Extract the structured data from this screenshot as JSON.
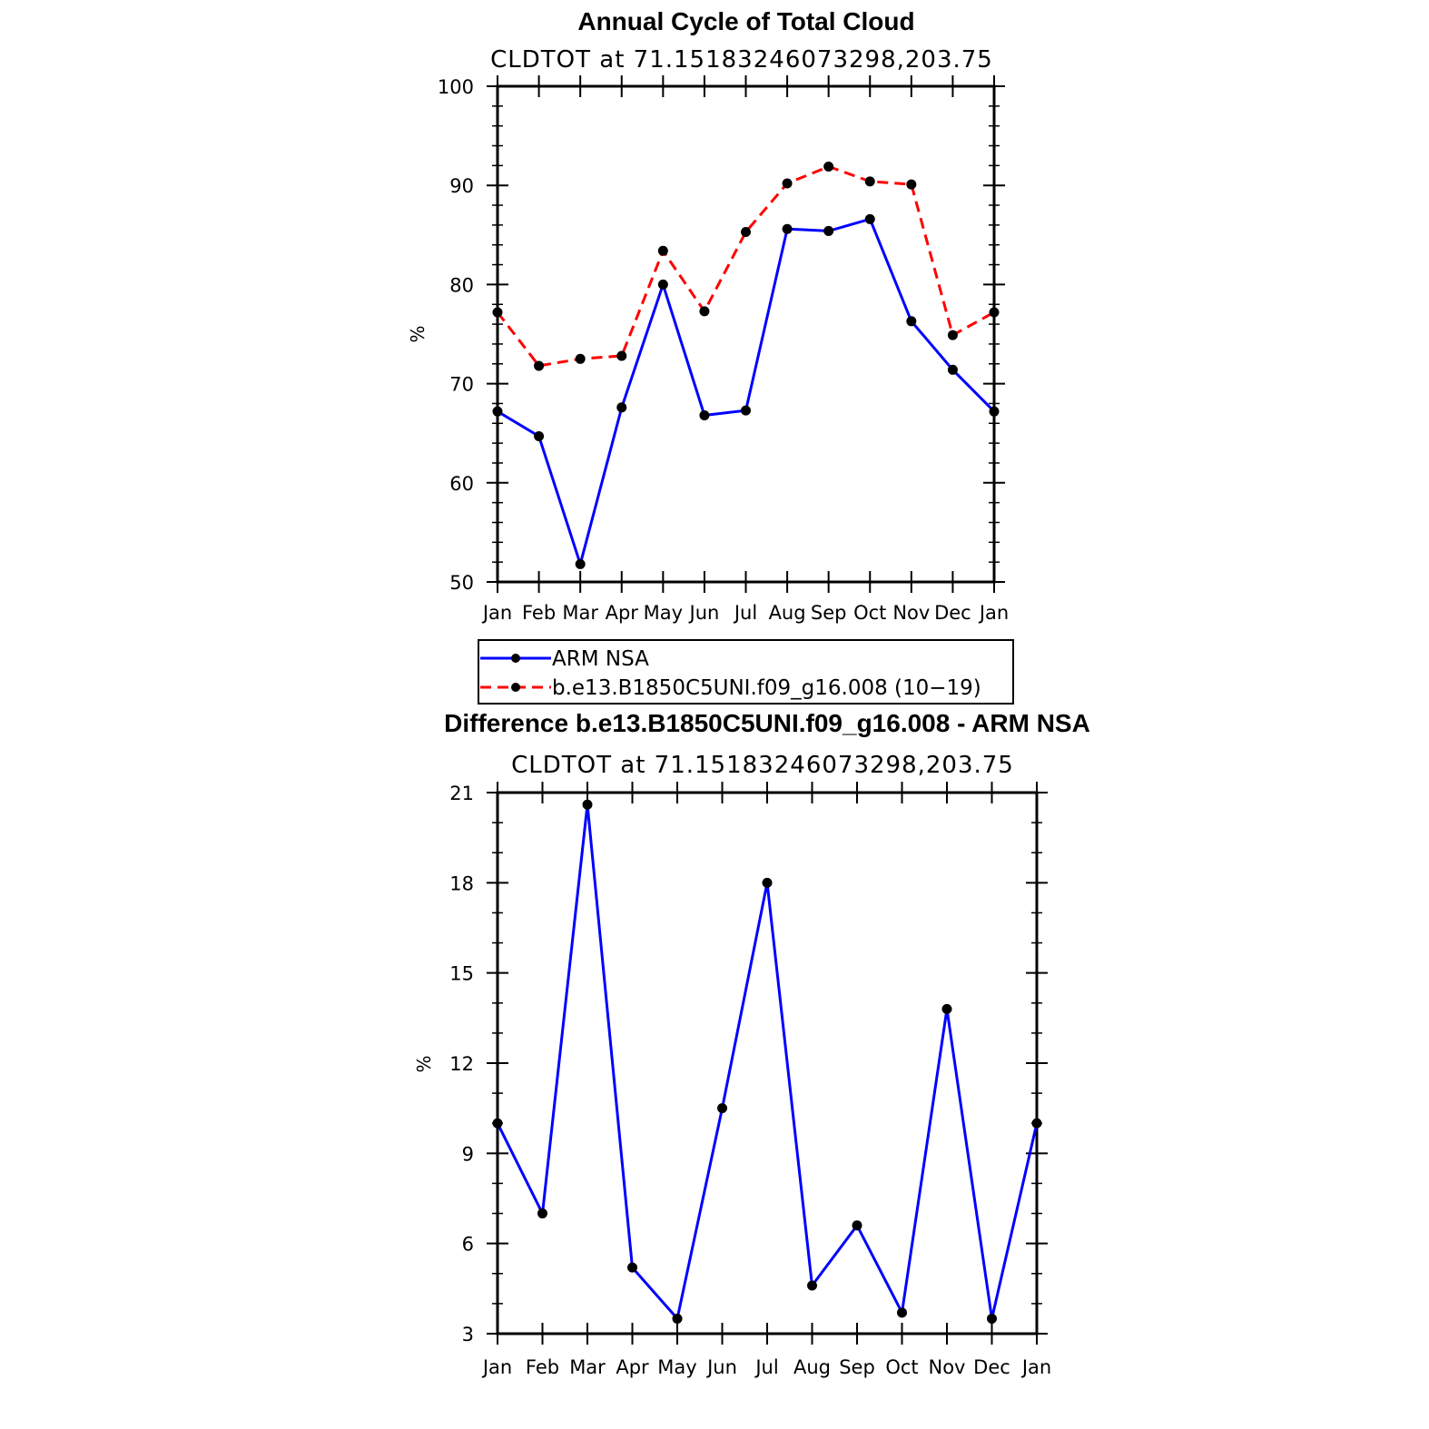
{
  "chart_data": [
    {
      "type": "line",
      "title": "Annual Cycle of Total Cloud",
      "subtitle": "CLDTOT at 71.15183246073298,203.75",
      "ylabel": "%",
      "ylim": [
        50,
        100
      ],
      "yticks": [
        50,
        60,
        70,
        80,
        90,
        100
      ],
      "categories": [
        "Jan",
        "Feb",
        "Mar",
        "Apr",
        "May",
        "Jun",
        "Jul",
        "Aug",
        "Sep",
        "Oct",
        "Nov",
        "Dec",
        "Jan"
      ],
      "series": [
        {
          "name": "ARM NSA",
          "color": "#0000ff",
          "dash": "solid",
          "values": [
            67.2,
            64.7,
            51.8,
            67.6,
            80.0,
            66.8,
            67.3,
            85.6,
            85.4,
            86.6,
            76.3,
            71.4,
            67.2
          ]
        },
        {
          "name": "b.e13.B1850C5UNI.f09_g16.008 (10−19)",
          "color": "#ff0000",
          "dash": "dashed",
          "values": [
            77.2,
            71.8,
            72.5,
            72.8,
            83.4,
            77.3,
            85.3,
            90.2,
            91.9,
            90.4,
            90.1,
            74.9,
            77.2
          ]
        }
      ],
      "legend": "bottom"
    },
    {
      "type": "line",
      "title": "Difference b.e13.B1850C5UNI.f09_g16.008 - ARM NSA",
      "subtitle": "CLDTOT at 71.15183246073298,203.75",
      "ylabel": "%",
      "ylim": [
        3,
        21
      ],
      "yticks": [
        3,
        6,
        9,
        12,
        15,
        18,
        21
      ],
      "categories": [
        "Jan",
        "Feb",
        "Mar",
        "Apr",
        "May",
        "Jun",
        "Jul",
        "Aug",
        "Sep",
        "Oct",
        "Nov",
        "Dec",
        "Jan"
      ],
      "series": [
        {
          "color": "#0000ff",
          "dash": "solid",
          "values": [
            10.0,
            7.0,
            20.6,
            5.2,
            3.5,
            10.5,
            18.0,
            4.6,
            6.6,
            3.7,
            13.8,
            3.5,
            10.0
          ]
        }
      ]
    }
  ]
}
